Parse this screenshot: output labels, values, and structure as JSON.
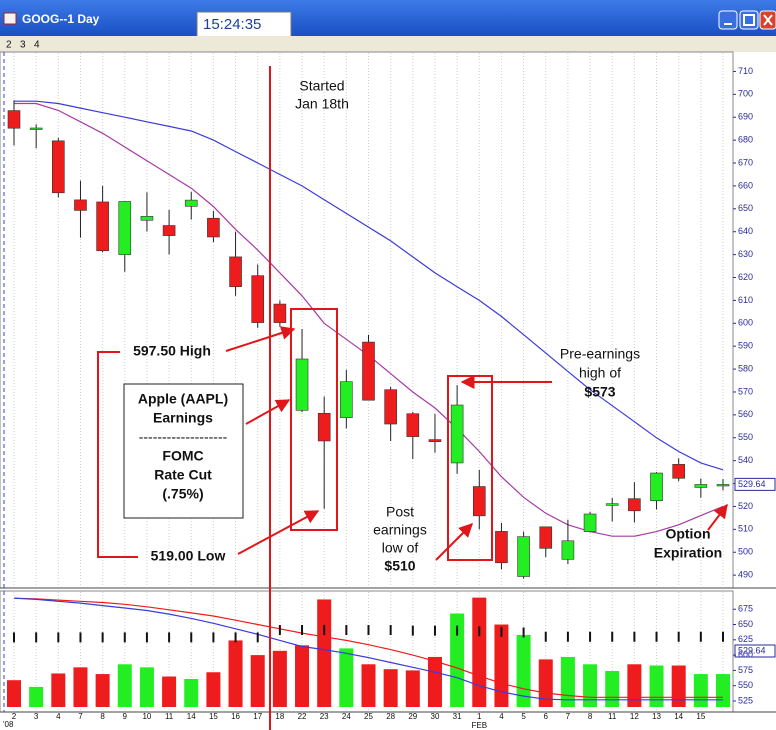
{
  "window": {
    "title": "GOOG--1 Day",
    "clock": "15:24:35",
    "toolbar": [
      "2",
      "3",
      "4"
    ]
  },
  "chart_data": [
    {
      "type": "candlestick",
      "open": [
        692.9,
        685.3,
        679.7,
        653.9,
        653.0,
        630.0,
        645.0,
        642.7,
        651.1,
        645.9,
        629.0,
        620.8,
        608.4,
        562.0,
        560.7,
        558.8,
        591.8,
        571.0,
        560.5,
        549.2,
        539.0,
        528.7,
        509.1,
        489.4,
        511.1,
        496.9,
        509.0,
        520.5,
        523.4,
        522.5,
        538.4,
        528.3,
        529.0
      ],
      "high": [
        697.4,
        686.9,
        681.0,
        662.3,
        660.0,
        653.3,
        657.2,
        649.5,
        657.4,
        649.1,
        640.0,
        625.7,
        610.0,
        597.5,
        568.0,
        579.7,
        595.0,
        572.2,
        561.3,
        560.4,
        573.0,
        536.0,
        512.8,
        509.0,
        511.2,
        514.2,
        517.7,
        523.7,
        530.6,
        535.0,
        541.0,
        532.2,
        532.0
      ],
      "low": [
        677.7,
        676.5,
        655.0,
        637.4,
        631.0,
        622.5,
        640.1,
        630.1,
        645.3,
        635.4,
        612.0,
        598.0,
        598.5,
        561.2,
        519.0,
        554.1,
        566.8,
        548.6,
        540.7,
        543.5,
        534.3,
        510.0,
        492.6,
        488.5,
        497.9,
        494.8,
        508.7,
        513.4,
        513.0,
        518.7,
        531.0,
        523.8,
        527.0
      ],
      "close": [
        685.2,
        685.3,
        657.0,
        649.3,
        631.7,
        653.2,
        646.7,
        638.3,
        653.8,
        637.7,
        616.0,
        600.3,
        600.3,
        584.4,
        548.6,
        574.5,
        566.4,
        556.0,
        550.5,
        548.3,
        564.3,
        515.9,
        495.4,
        506.8,
        501.7,
        505.0,
        516.7,
        521.2,
        518.1,
        534.6,
        532.3,
        529.6,
        529.6
      ],
      "up_color": "#22ee22",
      "down_color": "#ee1c1c",
      "lines": [
        {
          "color": "#3b3bdd",
          "values": [
            697,
            697,
            696,
            694,
            692,
            690,
            688,
            686,
            684,
            680,
            675,
            670,
            665,
            660,
            654,
            648,
            642,
            636,
            629,
            622,
            616,
            610,
            603,
            595,
            587,
            579,
            571,
            564,
            557,
            550,
            544,
            539,
            536
          ]
        },
        {
          "color": "#a63aa6",
          "values": [
            696,
            696,
            693,
            688,
            683,
            677,
            671,
            665,
            659,
            651,
            641,
            632,
            622,
            612,
            600,
            593,
            586,
            578,
            570,
            563,
            554,
            544,
            533,
            524,
            517,
            512,
            509,
            507,
            507,
            509,
            512,
            516,
            520
          ]
        }
      ],
      "last_price": 529.64,
      "ylim": [
        487,
        715
      ],
      "yticks": [
        490,
        500,
        510,
        520,
        530,
        540,
        550,
        560,
        570,
        580,
        590,
        600,
        610,
        620,
        630,
        640,
        650,
        660,
        670,
        680,
        690,
        700,
        710
      ],
      "annotations": [
        {
          "lines": [
            "Started",
            "Jan 18th"
          ]
        },
        {
          "lines": [
            "597.50 High"
          ]
        },
        {
          "lines": [
            "Apple (AAPL)",
            "Earnings",
            "-------------------",
            "FOMC",
            "Rate Cut",
            "(.75%)"
          ]
        },
        {
          "lines": [
            "519.00 Low"
          ]
        },
        {
          "lines": [
            "Post",
            "earnings",
            "low of",
            "$510"
          ]
        },
        {
          "lines": [
            "Pre-earnings",
            "high of",
            "$573"
          ]
        },
        {
          "lines": [
            "Option",
            "Expiration"
          ]
        }
      ]
    },
    {
      "type": "bar",
      "categories": [
        "2",
        "3",
        "4",
        "7",
        "8",
        "9",
        "10",
        "11",
        "14",
        "15",
        "16",
        "17",
        "18",
        "22",
        "23",
        "24",
        "25",
        "28",
        "29",
        "30",
        "31",
        "1",
        "4",
        "5",
        "6",
        "7",
        "8",
        "11",
        "12",
        "13",
        "14",
        "15",
        null
      ],
      "year_label": "'08",
      "month_label": "FEB",
      "values": [
        559,
        548,
        570,
        580,
        569,
        585,
        580,
        565,
        561,
        572,
        624,
        600,
        607,
        616,
        691,
        611,
        585,
        577,
        575,
        597,
        668,
        694,
        650,
        633,
        593,
        597,
        585,
        574,
        585,
        583,
        583,
        569,
        569
      ],
      "bar_colors": [
        "#ee1c1c",
        "#22ee22",
        "#ee1c1c",
        "#ee1c1c",
        "#ee1c1c",
        "#22ee22",
        "#22ee22",
        "#ee1c1c",
        "#22ee22",
        "#ee1c1c",
        "#ee1c1c",
        "#ee1c1c",
        "#ee1c1c",
        "#ee1c1c",
        "#ee1c1c",
        "#22ee22",
        "#ee1c1c",
        "#ee1c1c",
        "#ee1c1c",
        "#ee1c1c",
        "#22ee22",
        "#ee1c1c",
        "#ee1c1c",
        "#22ee22",
        "#ee1c1c",
        "#22ee22",
        "#22ee22",
        "#22ee22",
        "#ee1c1c",
        "#22ee22",
        "#ee1c1c",
        "#22ee22",
        "#22ee22"
      ],
      "lines": [
        {
          "color": "#ee1c1c",
          "values": [
            693,
            692,
            690,
            688,
            686,
            683,
            679,
            674,
            669,
            664,
            657,
            650,
            643,
            636,
            630,
            624,
            617,
            609,
            600,
            590,
            579,
            566,
            554,
            545,
            538,
            534,
            531,
            531,
            531,
            531,
            531,
            531,
            531
          ]
        },
        {
          "color": "#3b3bdd",
          "values": [
            693,
            691,
            688,
            685,
            681,
            677,
            673,
            667,
            660,
            652,
            643,
            634,
            624,
            614,
            609,
            603,
            596,
            588,
            580,
            572,
            563,
            550,
            540,
            533,
            528,
            527,
            527,
            527,
            527,
            527,
            527,
            527,
            527
          ]
        },
        {
          "color": "#111111",
          "style": "dash",
          "values": [
            629,
            629,
            629,
            629,
            629,
            629,
            629,
            629,
            629,
            629,
            629,
            629,
            641,
            641,
            641,
            641,
            641,
            641,
            640,
            640,
            640,
            639,
            638,
            637,
            630,
            630,
            630,
            630,
            630,
            630,
            630,
            630,
            630
          ]
        }
      ],
      "ylim": [
        507,
        695
      ],
      "yticks": [
        525,
        550,
        575,
        600,
        625,
        650,
        675
      ]
    }
  ]
}
